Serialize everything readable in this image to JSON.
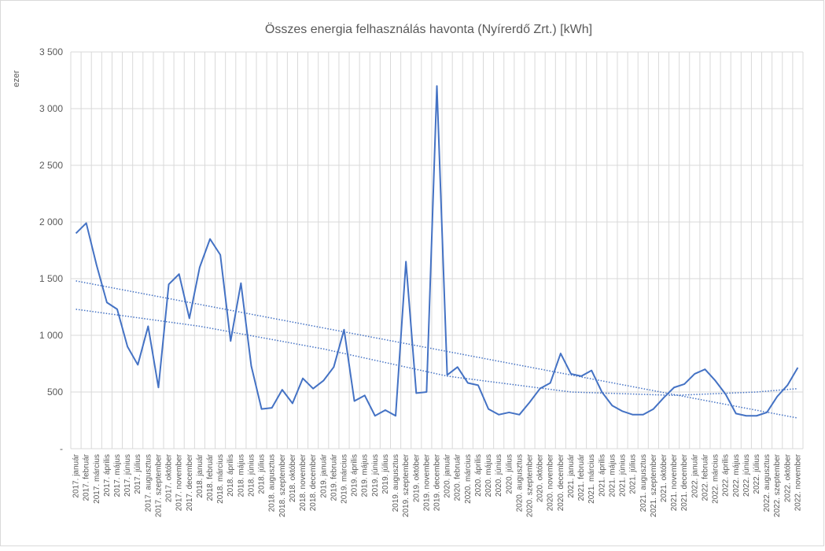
{
  "chart_data": {
    "type": "line",
    "title": "Összes energia felhasználás havonta (Nyírerdő Zrt.) [kWh]",
    "y_unit_label": "ezer",
    "categories": [
      "2017. január",
      "2017. február",
      "2017. március",
      "2017. április",
      "2017. május",
      "2017. június",
      "2017. július",
      "2017. augusztus",
      "2017. szeptember",
      "2017. október",
      "2017. november",
      "2017. december",
      "2018. január",
      "2018. február",
      "2018. március",
      "2018. április",
      "2018. május",
      "2018. június",
      "2018. július",
      "2018. augusztus",
      "2018. szeptember",
      "2018. október",
      "2018. november",
      "2018. december",
      "2019. január",
      "2019. február",
      "2019. március",
      "2019. április",
      "2019. május",
      "2019. június",
      "2019. július",
      "2019. augusztus",
      "2019. szeptember",
      "2019. október",
      "2019. november",
      "2019. december",
      "2020. január",
      "2020. február",
      "2020. március",
      "2020. április",
      "2020. május",
      "2020. június",
      "2020. július",
      "2020. augusztus",
      "2020. szeptember",
      "2020. október",
      "2020. november",
      "2020. december",
      "2021. január",
      "2021. február",
      "2021. március",
      "2021. április",
      "2021. május",
      "2021. június",
      "2021. július",
      "2021. augusztus",
      "2021. szeptember",
      "2021. október",
      "2021. november",
      "2021. december",
      "2022. január",
      "2022. február",
      "2022. március",
      "2022. április",
      "2022. május",
      "2022. június",
      "2022. július",
      "2022. augusztus",
      "2022. szeptember",
      "2022. október",
      "2022. november"
    ],
    "values": [
      1900,
      1990,
      1620,
      1290,
      1230,
      900,
      740,
      1080,
      540,
      1450,
      1540,
      1150,
      1600,
      1850,
      1710,
      950,
      1460,
      730,
      350,
      360,
      520,
      400,
      620,
      530,
      600,
      720,
      1050,
      420,
      470,
      290,
      340,
      290,
      1650,
      490,
      500,
      3200,
      650,
      720,
      580,
      560,
      350,
      300,
      320,
      300,
      410,
      530,
      580,
      840,
      660,
      640,
      690,
      500,
      380,
      330,
      300,
      300,
      350,
      450,
      540,
      570,
      660,
      700,
      600,
      480,
      310,
      290,
      290,
      320,
      460,
      560,
      715
    ],
    "color": "#4472c4",
    "trendlines": [
      {
        "x": [
          0,
          70
        ],
        "values": [
          1480,
          270
        ],
        "color": "#4472c4"
      },
      {
        "x": [
          0,
          12,
          24,
          36,
          48,
          58,
          66,
          70
        ],
        "values": [
          1230,
          1080,
          880,
          640,
          500,
          470,
          500,
          530
        ],
        "color": "#4472c4"
      }
    ],
    "ylim": [
      0,
      3500
    ],
    "yticks": [
      {
        "value": 0,
        "label": "-"
      },
      {
        "value": 500,
        "label": "500"
      },
      {
        "value": 1000,
        "label": "1 000"
      },
      {
        "value": 1500,
        "label": "1 500"
      },
      {
        "value": 2000,
        "label": "2 000"
      },
      {
        "value": 2500,
        "label": "2 500"
      },
      {
        "value": 3000,
        "label": "3 000"
      },
      {
        "value": 3500,
        "label": "3 500"
      }
    ],
    "grid": true
  }
}
